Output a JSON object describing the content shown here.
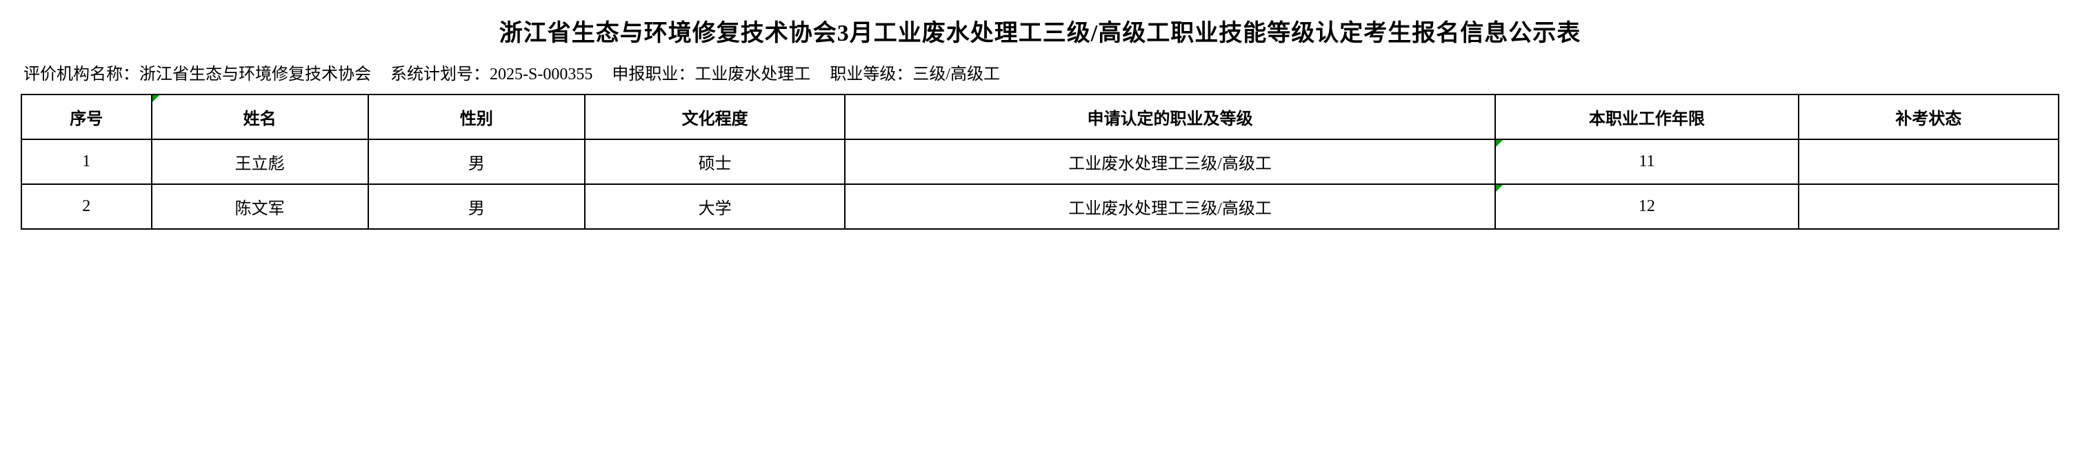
{
  "title": "浙江省生态与环境修复技术协会3月工业废水处理工三级/高级工职业技能等级认定考生报名信息公示表",
  "meta": {
    "org_label": "评价机构名称：",
    "org_value": "浙江省生态与环境修复技术协会",
    "plan_label": "系统计划号：",
    "plan_value": "2025-S-000355",
    "occ_label": "申报职业：",
    "occ_value": "工业废水处理工",
    "level_label": "职业等级：",
    "level_value": "三级/高级工"
  },
  "columns": [
    "序号",
    "姓名",
    "性别",
    "文化程度",
    "申请认定的职业及等级",
    "本职业工作年限",
    "补考状态"
  ],
  "rows": [
    {
      "seq": "1",
      "name": "王立彪",
      "sex": "男",
      "edu": "硕士",
      "occ": "工业废水处理工三级/高级工",
      "years": "11",
      "retest": ""
    },
    {
      "seq": "2",
      "name": "陈文军",
      "sex": "男",
      "edu": "大学",
      "occ": "工业废水处理工三级/高级工",
      "years": "12",
      "retest": ""
    }
  ],
  "style": {
    "border_color": "#000000",
    "marker_color": "#00a000",
    "background_color": "#ffffff",
    "title_fontsize": 34,
    "cell_fontsize": 24
  }
}
